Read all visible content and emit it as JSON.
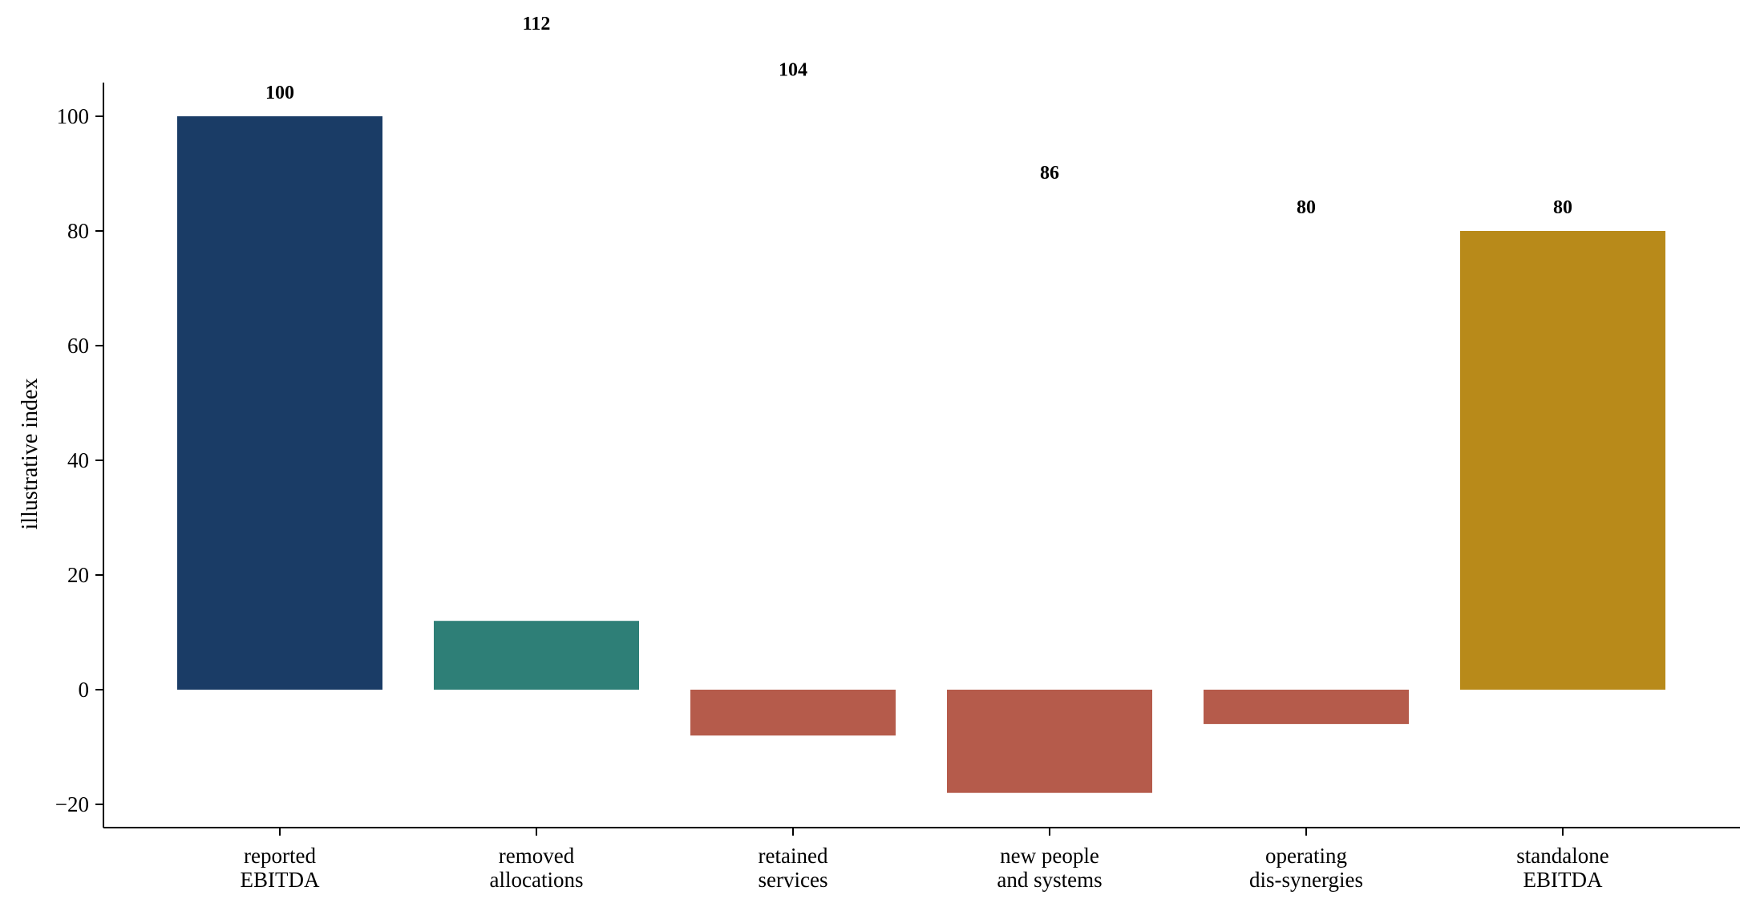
{
  "chart_data": {
    "type": "bar",
    "subtype": "waterfall",
    "title": "",
    "xlabel": "",
    "ylabel": "illustrative index",
    "ylim": [
      -24,
      106
    ],
    "yticks": [
      -20,
      0,
      20,
      40,
      60,
      80,
      100
    ],
    "ytick_labels": [
      "−20",
      "0",
      "20",
      "40",
      "60",
      "80",
      "100"
    ],
    "grid": false,
    "categories": [
      [
        "reported",
        "EBITDA"
      ],
      [
        "removed",
        "allocations"
      ],
      [
        "retained",
        "services"
      ],
      [
        "new people",
        "and systems"
      ],
      [
        "operating",
        "dis-synergies"
      ],
      [
        "standalone",
        "EBITDA"
      ]
    ],
    "values": [
      100,
      12,
      -8,
      -18,
      -6,
      80
    ],
    "running_totals": [
      "100",
      "112",
      "104",
      "86",
      "80",
      "80"
    ],
    "colors": [
      "#1a3c66",
      "#2e7f77",
      "#b55b4b",
      "#b55b4b",
      "#b55b4b",
      "#b88a1a"
    ]
  }
}
